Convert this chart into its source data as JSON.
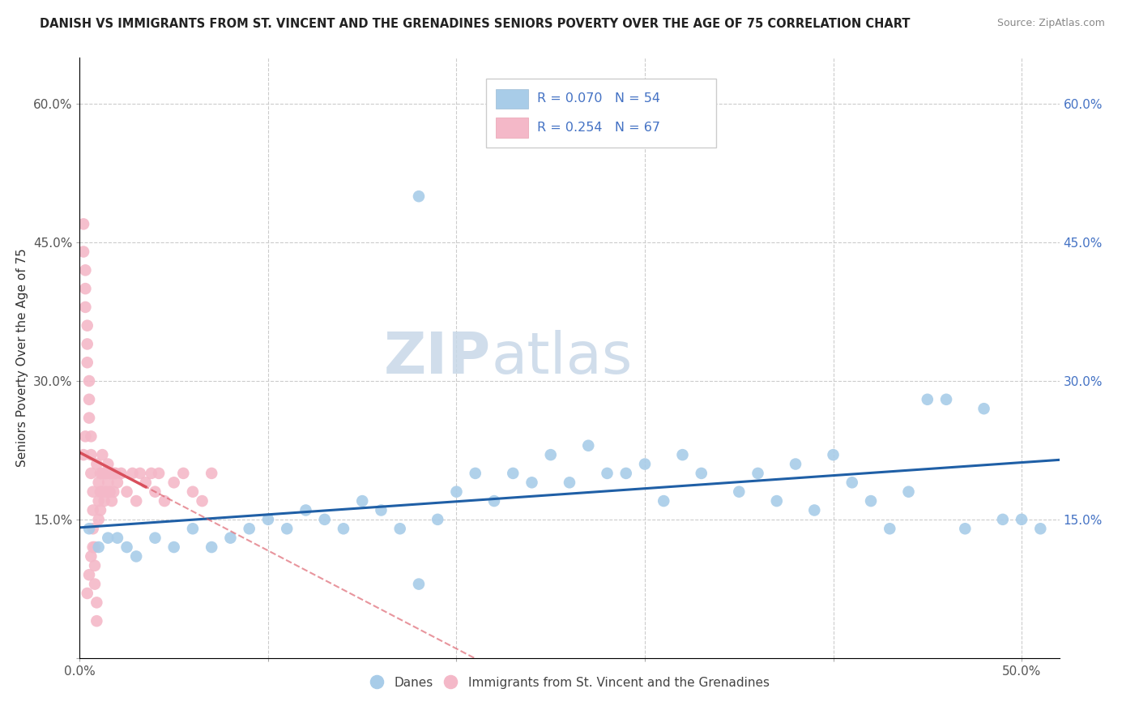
{
  "title": "DANISH VS IMMIGRANTS FROM ST. VINCENT AND THE GRENADINES SENIORS POVERTY OVER THE AGE OF 75 CORRELATION CHART",
  "source": "Source: ZipAtlas.com",
  "ylabel": "Seniors Poverty Over the Age of 75",
  "xlim": [
    0.0,
    0.52
  ],
  "ylim": [
    0.0,
    0.65
  ],
  "watermark_zip": "ZIP",
  "watermark_atlas": "atlas",
  "legend_blue_R": "0.070",
  "legend_blue_N": "54",
  "legend_pink_R": "0.254",
  "legend_pink_N": "67",
  "blue_scatter_color": "#a8cce8",
  "pink_scatter_color": "#f4b8c8",
  "blue_line_color": "#1f5fa6",
  "pink_line_color": "#d94f5c",
  "grid_color": "#cccccc",
  "title_color": "#222222",
  "tick_color": "#555555",
  "right_tick_color": "#4472c4",
  "danes_x": [
    0.005,
    0.01,
    0.015,
    0.02,
    0.025,
    0.03,
    0.04,
    0.05,
    0.06,
    0.07,
    0.08,
    0.09,
    0.1,
    0.11,
    0.12,
    0.13,
    0.14,
    0.15,
    0.16,
    0.17,
    0.18,
    0.19,
    0.2,
    0.21,
    0.22,
    0.23,
    0.24,
    0.25,
    0.26,
    0.27,
    0.28,
    0.29,
    0.3,
    0.31,
    0.32,
    0.33,
    0.35,
    0.36,
    0.37,
    0.38,
    0.39,
    0.4,
    0.41,
    0.42,
    0.43,
    0.44,
    0.45,
    0.46,
    0.47,
    0.48,
    0.49,
    0.5,
    0.51,
    0.18
  ],
  "danes_y": [
    0.14,
    0.12,
    0.13,
    0.13,
    0.12,
    0.11,
    0.13,
    0.12,
    0.14,
    0.12,
    0.13,
    0.14,
    0.15,
    0.14,
    0.16,
    0.15,
    0.14,
    0.17,
    0.16,
    0.14,
    0.5,
    0.15,
    0.18,
    0.2,
    0.17,
    0.2,
    0.19,
    0.22,
    0.19,
    0.23,
    0.2,
    0.2,
    0.21,
    0.17,
    0.22,
    0.2,
    0.18,
    0.2,
    0.17,
    0.21,
    0.16,
    0.22,
    0.19,
    0.17,
    0.14,
    0.18,
    0.28,
    0.28,
    0.14,
    0.27,
    0.15,
    0.15,
    0.14,
    0.08
  ],
  "imm_x": [
    0.002,
    0.002,
    0.003,
    0.003,
    0.003,
    0.004,
    0.004,
    0.004,
    0.005,
    0.005,
    0.005,
    0.006,
    0.006,
    0.006,
    0.007,
    0.007,
    0.007,
    0.008,
    0.008,
    0.008,
    0.009,
    0.009,
    0.009,
    0.01,
    0.01,
    0.01,
    0.011,
    0.011,
    0.011,
    0.012,
    0.012,
    0.012,
    0.013,
    0.013,
    0.014,
    0.014,
    0.015,
    0.015,
    0.016,
    0.016,
    0.017,
    0.017,
    0.018,
    0.018,
    0.019,
    0.02,
    0.022,
    0.025,
    0.028,
    0.03,
    0.032,
    0.035,
    0.038,
    0.04,
    0.042,
    0.045,
    0.05,
    0.055,
    0.06,
    0.065,
    0.07,
    0.002,
    0.003,
    0.004,
    0.005,
    0.006,
    0.007
  ],
  "imm_y": [
    0.47,
    0.44,
    0.42,
    0.4,
    0.38,
    0.36,
    0.34,
    0.32,
    0.3,
    0.28,
    0.26,
    0.24,
    0.22,
    0.2,
    0.18,
    0.16,
    0.14,
    0.12,
    0.1,
    0.08,
    0.06,
    0.04,
    0.21,
    0.19,
    0.17,
    0.15,
    0.2,
    0.18,
    0.16,
    0.22,
    0.2,
    0.18,
    0.2,
    0.17,
    0.2,
    0.18,
    0.21,
    0.19,
    0.2,
    0.18,
    0.2,
    0.17,
    0.2,
    0.18,
    0.2,
    0.19,
    0.2,
    0.18,
    0.2,
    0.17,
    0.2,
    0.19,
    0.2,
    0.18,
    0.2,
    0.17,
    0.19,
    0.2,
    0.18,
    0.17,
    0.2,
    0.22,
    0.24,
    0.07,
    0.09,
    0.11,
    0.12
  ]
}
